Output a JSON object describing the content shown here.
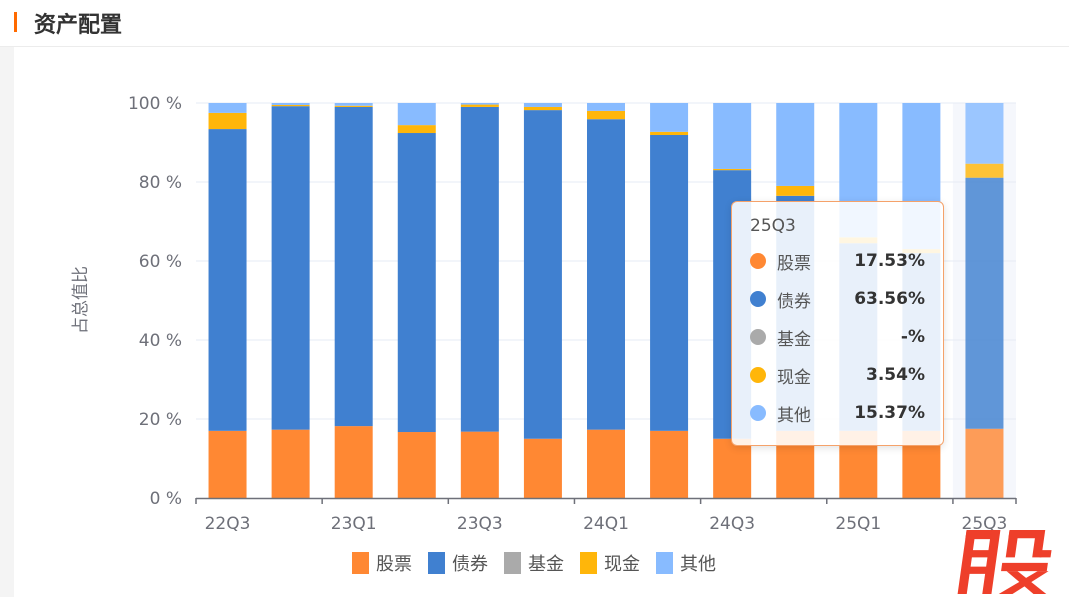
{
  "header": {
    "title": "资产配置",
    "accent_color": "#ff6a00"
  },
  "chart_data": {
    "type": "bar",
    "stacked": true,
    "ylabel": "占总值比",
    "ylim": [
      0,
      100
    ],
    "yticks": [
      "0 %",
      "20 %",
      "40 %",
      "60 %",
      "80 %",
      "100 %"
    ],
    "categories": [
      "22Q3",
      "22Q4",
      "23Q1",
      "23Q2",
      "23Q3",
      "23Q4",
      "24Q1",
      "24Q2",
      "24Q3",
      "24Q4",
      "25Q1",
      "25Q2",
      "25Q3"
    ],
    "xtick_labels": [
      "22Q3",
      "23Q1",
      "23Q3",
      "24Q1",
      "24Q3",
      "25Q1",
      "25Q3"
    ],
    "grid": true,
    "legend_position": "bottom",
    "series": [
      {
        "name": "股票",
        "color": "#ff8833",
        "values": [
          17.0,
          17.3,
          18.2,
          16.7,
          16.8,
          15.0,
          17.3,
          17.0,
          15.0,
          17.0,
          17.0,
          17.0,
          17.53
        ]
      },
      {
        "name": "债券",
        "color": "#4080d0",
        "values": [
          76.4,
          81.9,
          80.8,
          75.7,
          82.2,
          83.2,
          78.6,
          74.9,
          68.0,
          59.5,
          47.5,
          45.0,
          63.56
        ]
      },
      {
        "name": "基金",
        "color": "#aaaaaa",
        "values": [
          0,
          0,
          0,
          0,
          0,
          0,
          0,
          0,
          0,
          0,
          0,
          0,
          0
        ]
      },
      {
        "name": "现金",
        "color": "#ffb60a",
        "values": [
          4.1,
          0.3,
          0.3,
          2.0,
          0.6,
          0.8,
          2.1,
          0.8,
          0.3,
          2.5,
          1.5,
          1.0,
          3.54
        ]
      },
      {
        "name": "其他",
        "color": "#88bbff",
        "values": [
          2.5,
          0.5,
          0.7,
          5.6,
          0.4,
          1.0,
          2.0,
          7.3,
          16.7,
          21.0,
          34.0,
          37.0,
          15.37
        ]
      }
    ],
    "highlighted_category": "25Q3"
  },
  "tooltip": {
    "title": "25Q3",
    "rows": [
      {
        "name": "股票",
        "value": "17.53%",
        "color": "#ff8833"
      },
      {
        "name": "债券",
        "value": "63.56%",
        "color": "#4080d0"
      },
      {
        "name": "基金",
        "value": "-%",
        "color": "#aaaaaa"
      },
      {
        "name": "现金",
        "value": "3.54%",
        "color": "#ffb60a"
      },
      {
        "name": "其他",
        "value": "15.37%",
        "color": "#88bbff"
      }
    ]
  },
  "watermark": "股"
}
